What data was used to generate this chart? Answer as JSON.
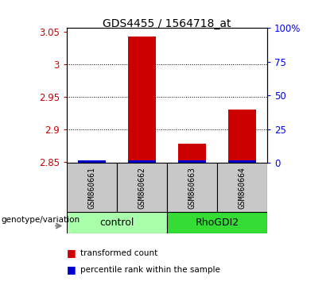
{
  "title": "GDS4455 / 1564718_at",
  "samples": [
    "GSM860661",
    "GSM860662",
    "GSM860663",
    "GSM860664"
  ],
  "group_labels": [
    "control",
    "RhoGDI2"
  ],
  "group_colors": [
    "#aaffaa",
    "#33dd33"
  ],
  "transformed_counts": [
    2.851,
    3.042,
    2.878,
    2.93
  ],
  "percentile_bar_height": 0.004,
  "bar_base": 2.848,
  "ylim_min": 2.848,
  "ylim_max": 3.055,
  "yticks": [
    2.85,
    2.9,
    2.95,
    3.0,
    3.05
  ],
  "ytick_labels": [
    "2.85",
    "2.9",
    "2.95",
    "3",
    "3.05"
  ],
  "right_yticks_pct": [
    0,
    25,
    50,
    75,
    100
  ],
  "right_ytick_labels": [
    "0",
    "25",
    "50",
    "75",
    "100%"
  ],
  "red_color": "#CC0000",
  "blue_color": "#0000CC",
  "label_area_color": "#C8C8C8",
  "genotype_label": "genotype/variation",
  "legend_red": "transformed count",
  "legend_blue": "percentile rank within the sample",
  "bar_width": 0.55
}
